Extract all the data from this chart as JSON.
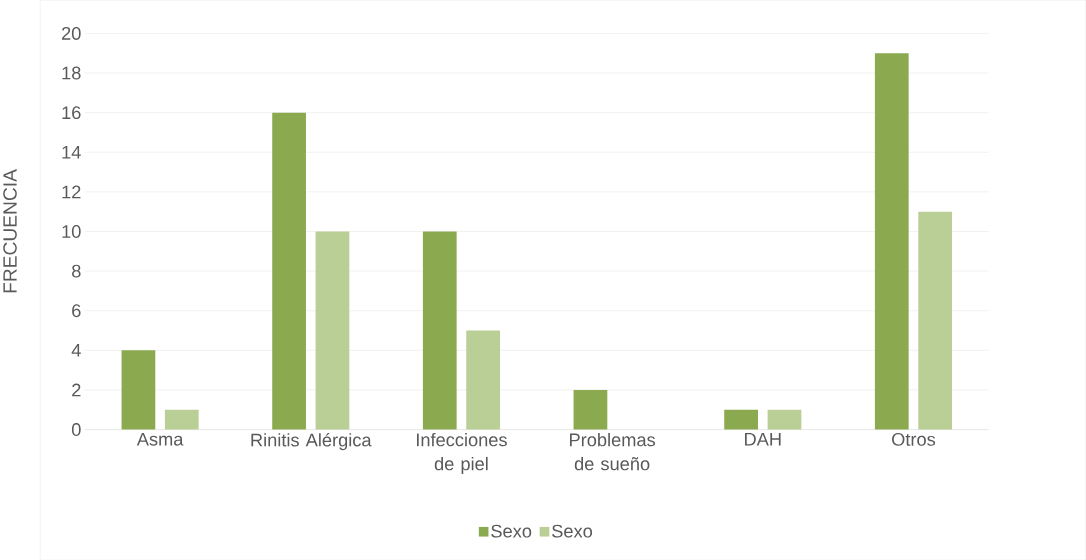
{
  "chart_data": {
    "type": "bar",
    "ylabel": "FRECUENCIA",
    "categories": [
      "Asma",
      "Rinitis Alérgica",
      "Infecciones de piel",
      "Problemas de sueño",
      "DAH",
      "Otros"
    ],
    "series": [
      {
        "name": "Sexo",
        "color": "#8ba94f",
        "values": [
          4,
          16,
          10,
          2,
          1,
          19
        ]
      },
      {
        "name": "Sexo",
        "color": "#b9cf96",
        "values": [
          1,
          10,
          5,
          null,
          1,
          11
        ]
      }
    ],
    "ylim": [
      0,
      20
    ],
    "yticks": [
      0,
      2,
      4,
      6,
      8,
      10,
      12,
      14,
      16,
      18,
      20
    ],
    "grid": "y",
    "legend": "bottom"
  }
}
